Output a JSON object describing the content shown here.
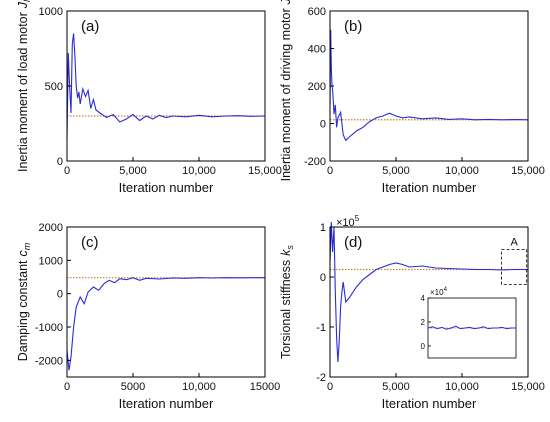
{
  "colors": {
    "series": "#2b2bd6",
    "reference": "#c8872a",
    "axis": "#000000"
  },
  "chart_data": [
    {
      "type": "line",
      "panel_label": "(a)",
      "ylabel": "Inertia moment of load motor",
      "ylabel_symbol": "J",
      "ylabel_sub": "l",
      "xlabel": "Iteration number",
      "xlim": [
        0,
        15000
      ],
      "ylim": [
        0,
        1000
      ],
      "xticks": [
        0,
        5000,
        10000,
        15000
      ],
      "xtick_labels": [
        "0",
        "5,000",
        "10,000",
        "15,000"
      ],
      "yticks": [
        0,
        500,
        1000
      ],
      "ytick_labels": [
        "0",
        "500",
        "1000"
      ],
      "reference": 300,
      "series": [
        {
          "x": [
            0,
            100,
            200,
            300,
            400,
            500,
            600,
            700,
            800,
            900,
            1000,
            1200,
            1400,
            1600,
            1800,
            2000,
            2200,
            2500,
            3000,
            3500,
            4000,
            4500,
            5000,
            5500,
            6000,
            6500,
            7000,
            7500,
            8000,
            9000,
            10000,
            11000,
            12000,
            13000,
            14000,
            15000
          ],
          "y": [
            150,
            720,
            500,
            320,
            780,
            850,
            700,
            500,
            420,
            460,
            380,
            480,
            430,
            470,
            350,
            410,
            340,
            320,
            290,
            310,
            260,
            280,
            310,
            270,
            300,
            280,
            305,
            290,
            300,
            295,
            305,
            295,
            300,
            302,
            298,
            300
          ]
        }
      ]
    },
    {
      "type": "line",
      "panel_label": "(b)",
      "ylabel": "Inertia moment of driving motor",
      "ylabel_symbol": "J",
      "ylabel_sub": "m",
      "xlabel": "Iteration number",
      "xlim": [
        0,
        15000
      ],
      "ylim": [
        -200,
        600
      ],
      "xticks": [
        0,
        5000,
        10000,
        15000
      ],
      "xtick_labels": [
        "0",
        "5,000",
        "10,000",
        "15,000"
      ],
      "yticks": [
        -200,
        0,
        200,
        400,
        600
      ],
      "ytick_labels": [
        "-200",
        "0",
        "200",
        "400",
        "600"
      ],
      "reference": 20,
      "series": [
        {
          "x": [
            0,
            50,
            100,
            150,
            200,
            250,
            300,
            400,
            500,
            600,
            800,
            1000,
            1200,
            1500,
            2000,
            2500,
            3000,
            3500,
            4000,
            4500,
            5000,
            5500,
            6000,
            7000,
            8000,
            9000,
            10000,
            11000,
            12000,
            13000,
            14000,
            15000
          ],
          "y": [
            100,
            500,
            300,
            200,
            180,
            120,
            50,
            100,
            -20,
            30,
            60,
            -60,
            -90,
            -70,
            -40,
            -20,
            10,
            30,
            40,
            55,
            40,
            30,
            35,
            25,
            30,
            22,
            25,
            20,
            22,
            20,
            21,
            20
          ]
        }
      ]
    },
    {
      "type": "line",
      "panel_label": "(c)",
      "ylabel": "Damping constant",
      "ylabel_symbol": "c",
      "ylabel_sub": "m",
      "xlabel": "Iteration number",
      "xlim": [
        0,
        15000
      ],
      "ylim": [
        -2500,
        2000
      ],
      "xticks": [
        0,
        5000,
        10000,
        15000
      ],
      "xtick_labels": [
        "0",
        "5000",
        "10,000",
        "15000"
      ],
      "yticks": [
        -2000,
        -1000,
        0,
        1000,
        2000
      ],
      "ytick_labels": [
        "-2000",
        "-1000",
        "0",
        "1000",
        "2000"
      ],
      "reference": 480,
      "series": [
        {
          "x": [
            0,
            150,
            300,
            500,
            700,
            1000,
            1300,
            1600,
            2000,
            2400,
            2800,
            3200,
            3600,
            4000,
            4500,
            5000,
            5500,
            6000,
            7000,
            8000,
            9000,
            10000,
            11000,
            12000,
            13000,
            14000,
            15000
          ],
          "y": [
            -1700,
            -2300,
            -1900,
            -1000,
            -400,
            -100,
            -300,
            50,
            200,
            100,
            300,
            400,
            330,
            450,
            420,
            480,
            400,
            460,
            440,
            470,
            460,
            480,
            470,
            480,
            475,
            480,
            480
          ]
        }
      ]
    },
    {
      "type": "line",
      "panel_label": "(d)",
      "ylabel": "Torsional stiffness",
      "ylabel_symbol": "k",
      "ylabel_sub": "s",
      "xlabel": "Iteration number",
      "scale_label": "×10",
      "scale_exp": "5",
      "annotation": "A",
      "xlim": [
        0,
        15000
      ],
      "ylim": [
        -2,
        1
      ],
      "xticks": [
        0,
        5000,
        10000,
        15000
      ],
      "xtick_labels": [
        "0",
        "5,000",
        "10,000",
        "15,000"
      ],
      "yticks": [
        -2,
        -1,
        0,
        1
      ],
      "ytick_labels": [
        "-2",
        "-1",
        "0",
        "1"
      ],
      "reference": 0.15,
      "series": [
        {
          "x": [
            0,
            100,
            200,
            300,
            400,
            500,
            600,
            700,
            800,
            900,
            1000,
            1200,
            1500,
            2000,
            2500,
            3000,
            3500,
            4000,
            4500,
            5000,
            5500,
            6000,
            7000,
            8000,
            9000,
            10000,
            11000,
            12000,
            13000,
            14000,
            15000
          ],
          "y": [
            0.3,
            1.1,
            0.5,
            1.0,
            -0.3,
            -1.2,
            -1.7,
            -1.3,
            -0.6,
            -0.3,
            -0.1,
            -0.5,
            -0.4,
            -0.2,
            -0.05,
            0.05,
            0.15,
            0.2,
            0.25,
            0.28,
            0.25,
            0.2,
            0.22,
            0.18,
            0.17,
            0.16,
            0.15,
            0.15,
            0.14,
            0.15,
            0.15
          ]
        }
      ],
      "inset": {
        "scale_label": "×10",
        "scale_exp": "4",
        "ylim": [
          -1,
          4
        ],
        "yticks": [
          0,
          2,
          4
        ],
        "ytick_labels": [
          "0",
          "2",
          "4"
        ],
        "reference": 1.5,
        "series_y": [
          1.5,
          1.6,
          1.45,
          1.55,
          1.4,
          1.5,
          1.65,
          1.45,
          1.5,
          1.55,
          1.45,
          1.5,
          1.6,
          1.45,
          1.5,
          1.5,
          1.55,
          1.45,
          1.5,
          1.5
        ]
      }
    }
  ]
}
